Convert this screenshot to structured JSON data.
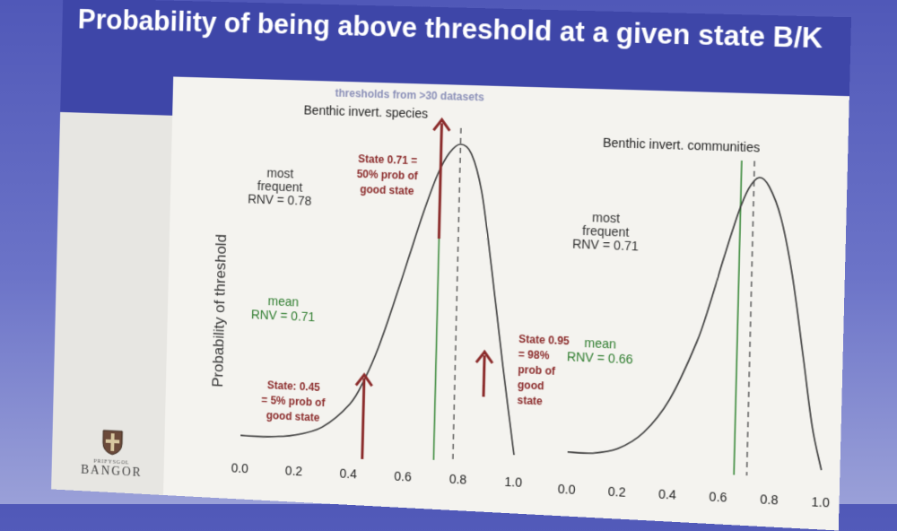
{
  "slide": {
    "title": "Probability of being above threshold at a given state B/K",
    "subtitle": "thresholds from >30 datasets",
    "logo": {
      "small_text": "PRIFYSGOL",
      "big_text": "BANGOR"
    }
  },
  "colors": {
    "curve": "#3a3a3a",
    "green_line": "#3c8a3c",
    "dashed_line": "#555555",
    "arrow": "#8b2b2b",
    "annotation": "#8b2b2b",
    "green_text": "#2f7d2f"
  },
  "chart_data": [
    {
      "type": "line",
      "title": "Benthic invert. species",
      "ylabel": "Probability of threshold",
      "xlim": [
        0.0,
        1.0
      ],
      "xticks": [
        "0.0",
        "0.2",
        "0.4",
        "0.6",
        "0.8",
        "1.0"
      ],
      "x": [
        0.0,
        0.1,
        0.2,
        0.3,
        0.4,
        0.45,
        0.5,
        0.55,
        0.6,
        0.65,
        0.7,
        0.74,
        0.78,
        0.82,
        0.86,
        0.9,
        0.95,
        1.0
      ],
      "y": [
        0.02,
        0.02,
        0.03,
        0.06,
        0.14,
        0.22,
        0.33,
        0.47,
        0.62,
        0.77,
        0.9,
        0.97,
        1.0,
        0.97,
        0.85,
        0.62,
        0.3,
        0.0
      ],
      "vlines": {
        "mean_green": 0.71,
        "most_frequent_dashed": 0.78
      },
      "arrows": [
        0.45,
        0.71,
        0.95
      ],
      "labels": {
        "most_frequent": [
          "most",
          "frequent",
          "RNV = 0.78"
        ],
        "mean": [
          "mean",
          "RNV = 0.71"
        ],
        "arrow1": [
          "State: 0.45",
          "= 5% prob of",
          "good state"
        ],
        "arrow2": [
          "State 0.71 =",
          "50% prob of",
          "good state"
        ],
        "arrow3": [
          "State 0.95",
          "= 98%",
          "prob of",
          "good",
          "state"
        ]
      }
    },
    {
      "type": "line",
      "title": "Benthic invert. communities",
      "xlim": [
        0.0,
        1.0
      ],
      "xticks": [
        "0.0",
        "0.2",
        "0.4",
        "0.6",
        "0.8",
        "1.0"
      ],
      "x": [
        0.0,
        0.1,
        0.2,
        0.3,
        0.4,
        0.5,
        0.55,
        0.6,
        0.65,
        0.69,
        0.73,
        0.77,
        0.82,
        0.87,
        0.92,
        0.96,
        1.0
      ],
      "y": [
        0.02,
        0.02,
        0.04,
        0.1,
        0.22,
        0.42,
        0.56,
        0.72,
        0.87,
        0.96,
        1.0,
        0.97,
        0.86,
        0.66,
        0.38,
        0.15,
        0.0
      ],
      "vlines": {
        "mean_green": 0.66,
        "most_frequent_dashed": 0.71
      },
      "labels": {
        "most_frequent": [
          "most",
          "frequent",
          "RNV = 0.71"
        ],
        "mean": [
          "mean",
          "RNV = 0.66"
        ]
      }
    }
  ]
}
